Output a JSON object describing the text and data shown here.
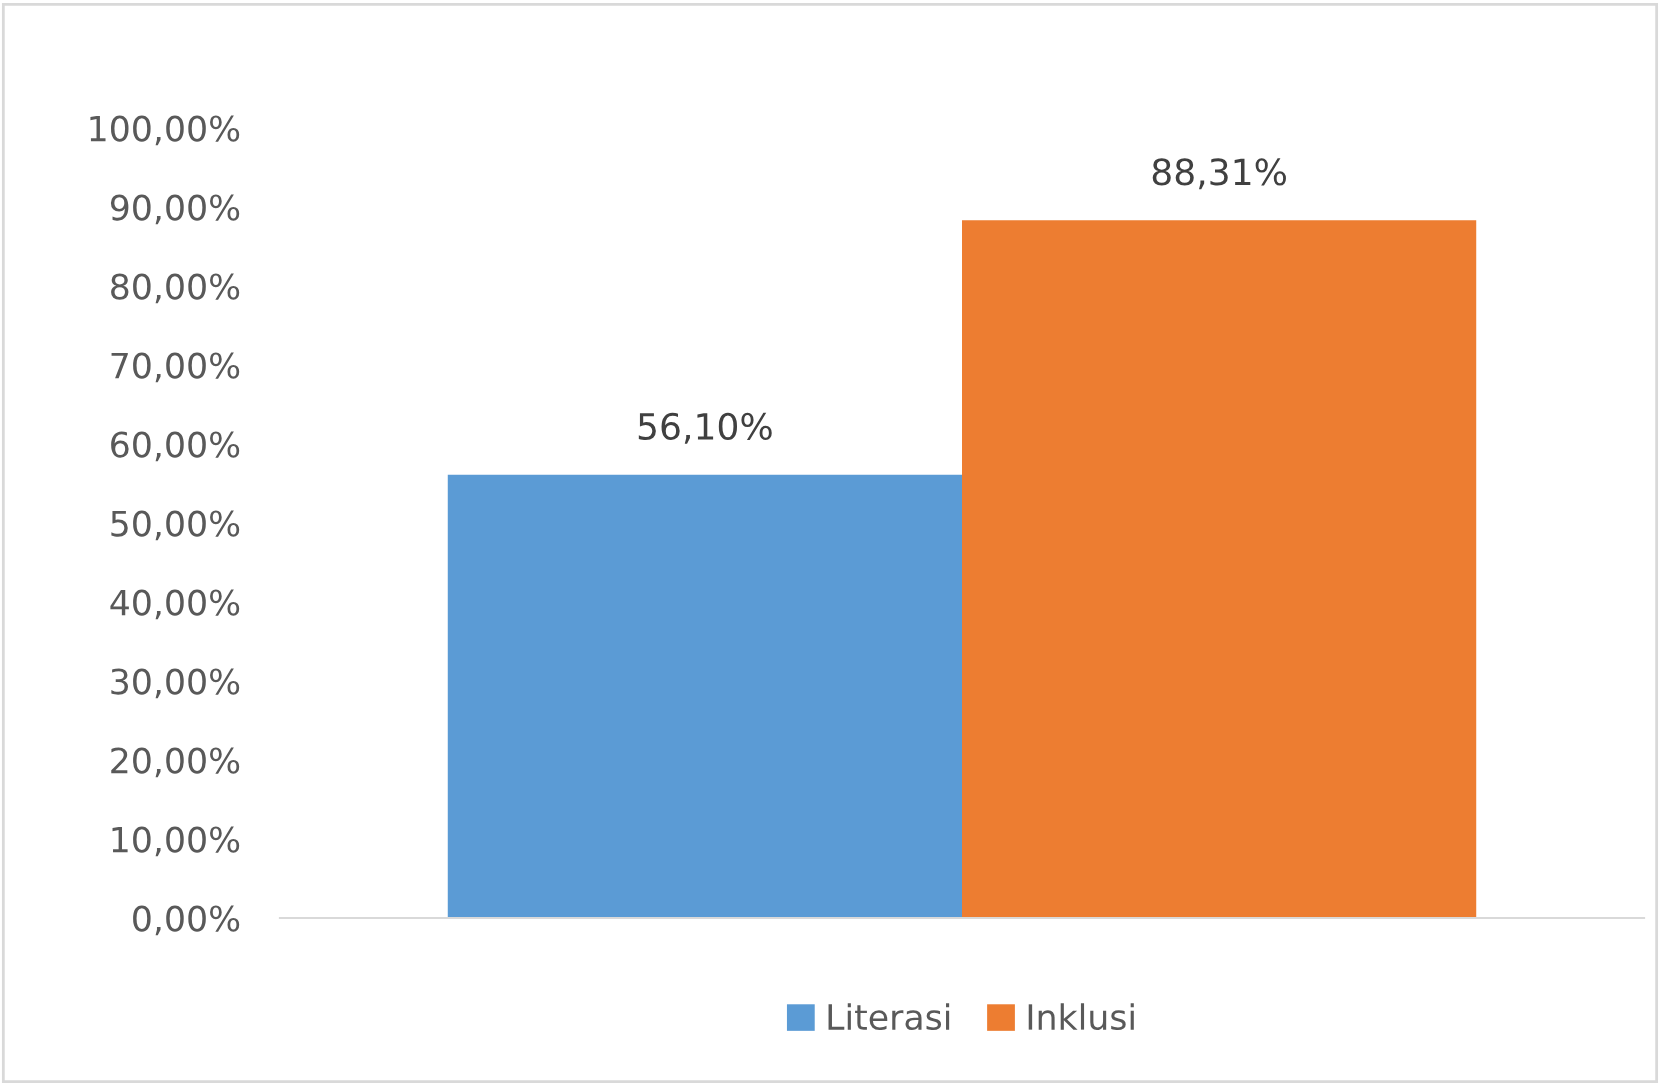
{
  "chart_data": {
    "type": "bar",
    "categories": [
      null
    ],
    "series": [
      {
        "name": "Literasi",
        "color": "#5b9bd5",
        "values": [
          56.1
        ],
        "value_labels": [
          "56,10%"
        ]
      },
      {
        "name": "Inklusi",
        "color": "#ed7d31",
        "values": [
          88.31
        ],
        "value_labels": [
          "88,31%"
        ]
      }
    ],
    "ylim": [
      0,
      100
    ],
    "yticks": [
      {
        "value": 0,
        "label": "0,00%"
      },
      {
        "value": 10,
        "label": "10,00%"
      },
      {
        "value": 20,
        "label": "20,00%"
      },
      {
        "value": 30,
        "label": "30,00%"
      },
      {
        "value": 40,
        "label": "40,00%"
      },
      {
        "value": 50,
        "label": "50,00%"
      },
      {
        "value": 60,
        "label": "60,00%"
      },
      {
        "value": 70,
        "label": "70,00%"
      },
      {
        "value": 80,
        "label": "80,00%"
      },
      {
        "value": 90,
        "label": "90,00%"
      },
      {
        "value": 100,
        "label": "100,00%"
      }
    ],
    "grid": false,
    "legend": "bottom"
  }
}
